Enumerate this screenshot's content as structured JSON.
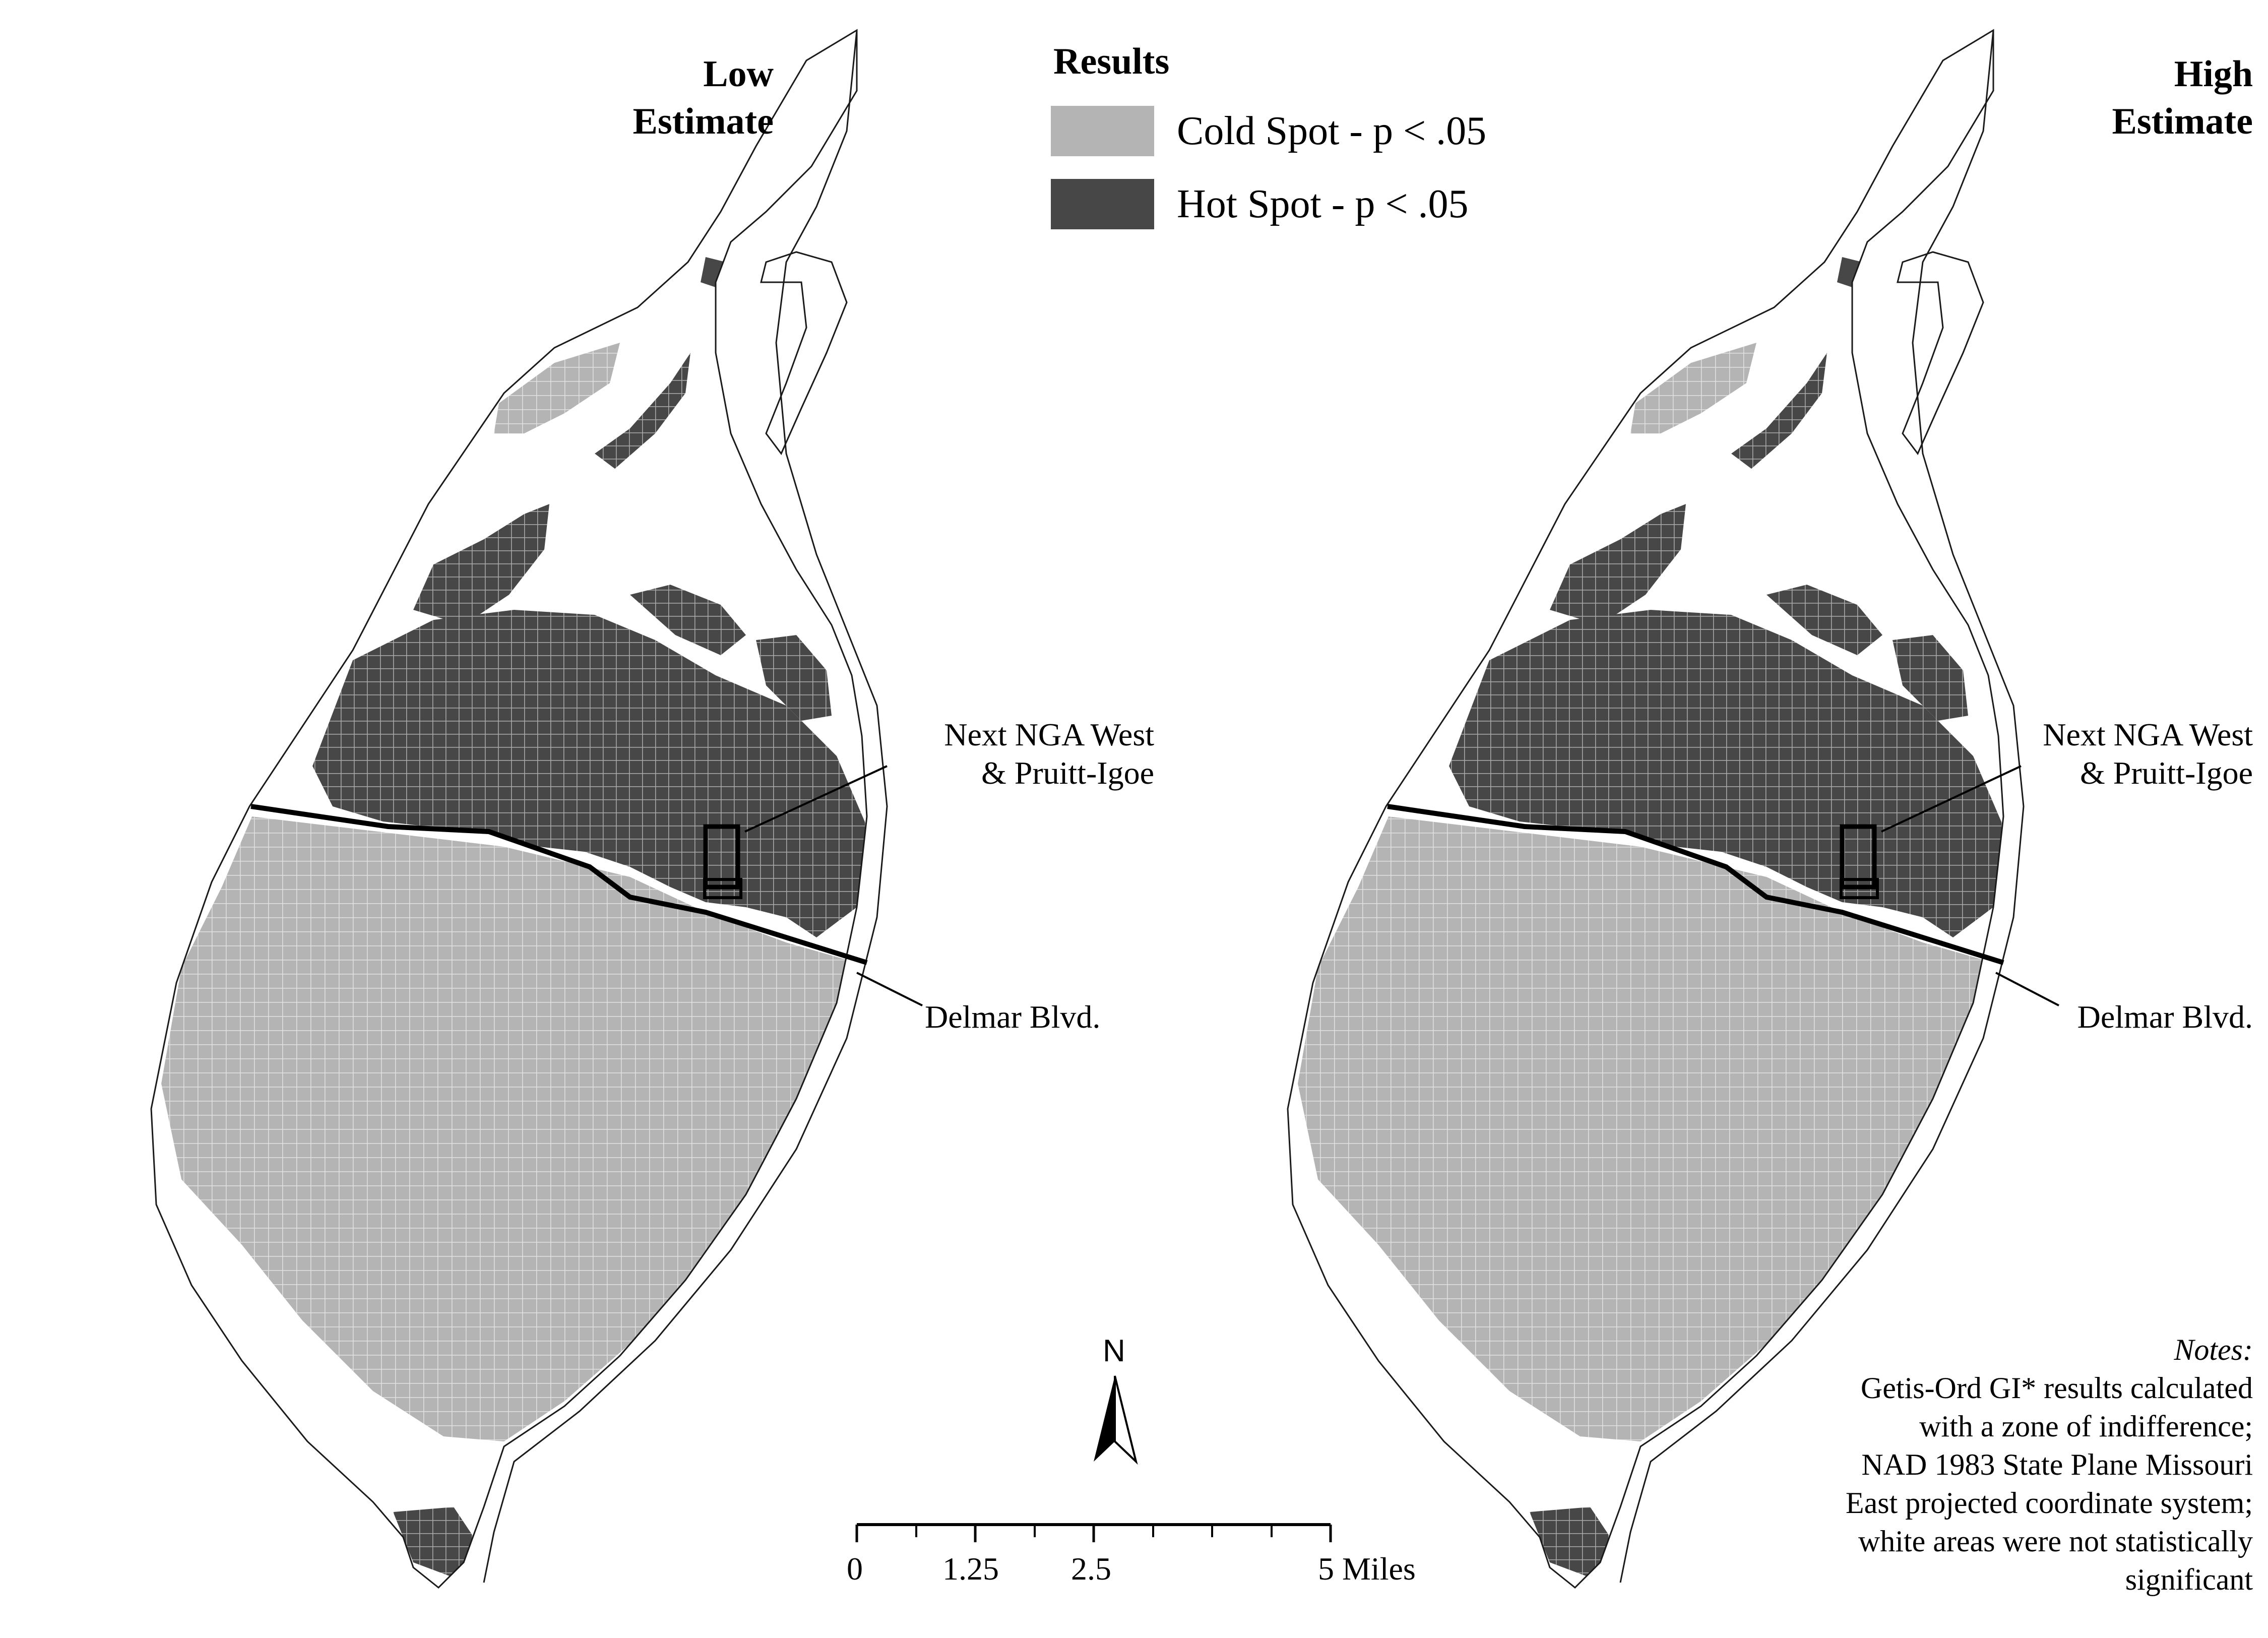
{
  "maps": [
    {
      "id": "low",
      "title_line1": "Low",
      "title_line2": "Estimate"
    },
    {
      "id": "high",
      "title_line1": "High",
      "title_line2": "Estimate"
    }
  ],
  "legend": {
    "title": "Results",
    "items": [
      {
        "label": "Cold Spot - p < .05",
        "color": "#b4b4b4"
      },
      {
        "label": "Hot Spot - p < .05",
        "color": "#474747"
      }
    ]
  },
  "annotations": {
    "site_line1": "Next NGA West",
    "site_line2": "& Pruitt-Igoe",
    "road": "Delmar Blvd."
  },
  "north_arrow": {
    "label": "N"
  },
  "scale_bar": {
    "ticks": [
      "0",
      "1.25",
      "2.5",
      "5 Miles"
    ]
  },
  "notes": {
    "heading": "Notes:",
    "lines": [
      "Getis-Ord GI* results calculated",
      "with a zone of indifference;",
      "NAD 1983 State Plane Missouri",
      "East projected coordinate system;",
      "white areas were not statistically",
      "significant"
    ]
  },
  "colors": {
    "cold": "#b4b4b4",
    "hot": "#474747",
    "outline": "#1a1a1a"
  }
}
